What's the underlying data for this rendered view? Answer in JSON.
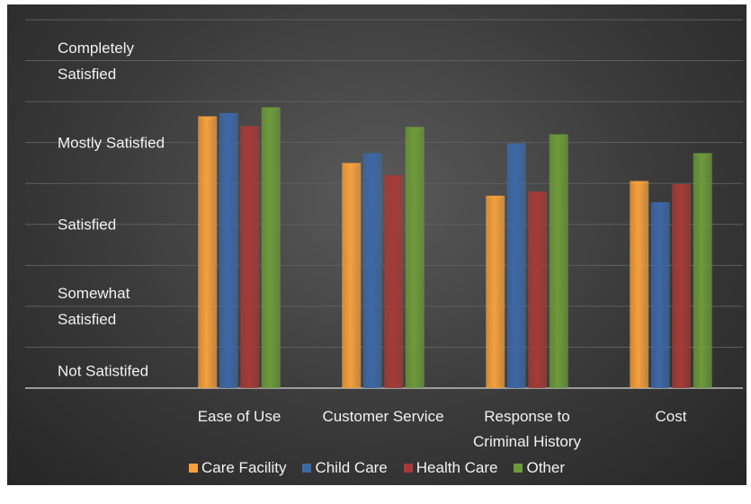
{
  "chart_data": {
    "type": "bar",
    "categories": [
      "Ease of Use",
      "Customer Service",
      "Response to Criminal History",
      "Cost"
    ],
    "series": [
      {
        "name": "Care Facility",
        "color": "#f5a03c",
        "values": [
          4.32,
          3.75,
          3.35,
          3.53
        ]
      },
      {
        "name": "Child Care",
        "color": "#3d68a6",
        "values": [
          4.36,
          3.87,
          3.99,
          3.27
        ]
      },
      {
        "name": "Health Care",
        "color": "#a63a37",
        "values": [
          4.2,
          3.6,
          3.4,
          3.49
        ]
      },
      {
        "name": "Other",
        "color": "#6e9a3a",
        "values": [
          4.43,
          4.19,
          4.1,
          3.87
        ]
      }
    ],
    "ylim": [
      1,
      5.5
    ],
    "yticks": [
      {
        "value": 1,
        "label": "Not Satistifed"
      },
      {
        "value": 2,
        "label": "Somewhat Satisfied"
      },
      {
        "value": 3,
        "label": "Satisfied"
      },
      {
        "value": 4,
        "label": "Mostly Satisfied"
      },
      {
        "value": 5,
        "label": "Completely Satisfied"
      }
    ],
    "minor_yticks": [
      1.5,
      2.5,
      3.5,
      4.5,
      5.5
    ],
    "grid": true,
    "legend": "bottom"
  }
}
